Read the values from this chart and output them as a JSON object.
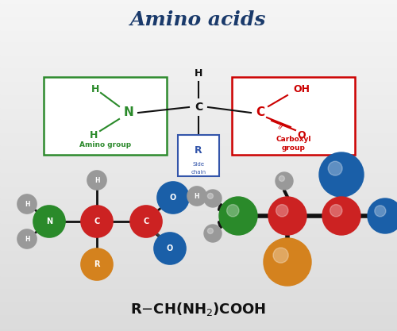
{
  "title": "Amino acids",
  "title_color": "#1a3a6b",
  "title_fontsize": 18,
  "amino_box_color": "#2d8a2d",
  "carboxyl_box_color": "#cc0000",
  "side_chain_box_color": "#3355aa",
  "amino_label": "Amino group",
  "carboxyl_label1": "Carboxyl",
  "carboxyl_label2": "group",
  "side_chain_label1": "Side",
  "side_chain_label2": "chain",
  "colors": {
    "N": "#2a8a2a",
    "C_red": "#cc2222",
    "O_blue": "#1a5fa8",
    "H_gray": "#999999",
    "R_orange": "#d4821e",
    "bond": "#111111"
  },
  "fig_width": 5.0,
  "fig_height": 4.17,
  "dpi": 100
}
